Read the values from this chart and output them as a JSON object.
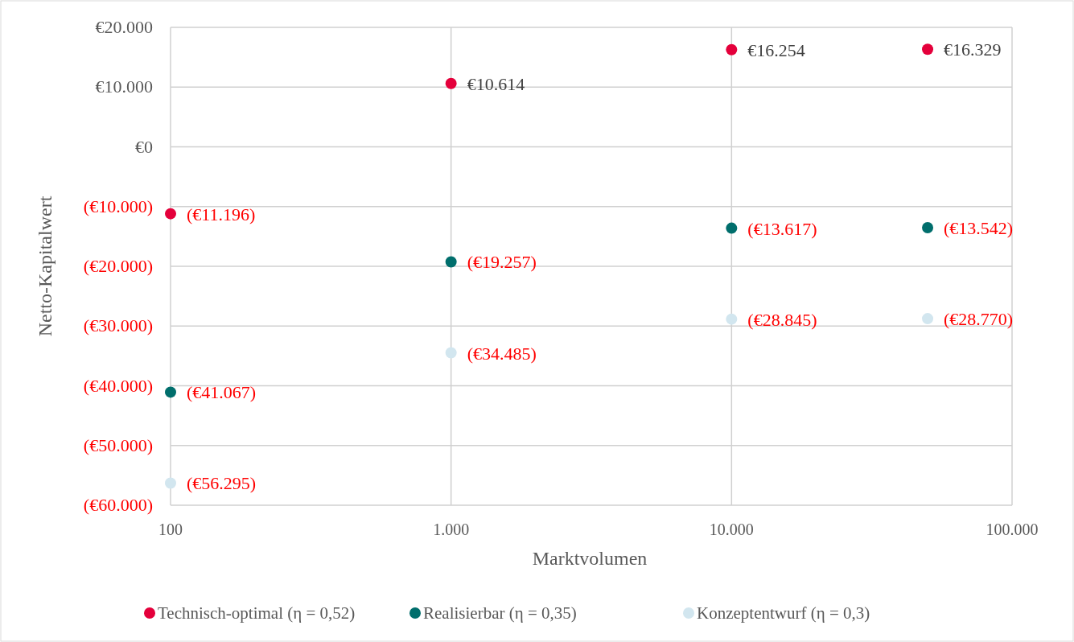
{
  "chart_data": {
    "type": "scatter",
    "xlabel": "Marktvolumen",
    "ylabel": "Netto-Kapitalwert",
    "log": "x",
    "grid": true,
    "legend": "bottom",
    "marker": "circle",
    "x": [
      100,
      1000,
      10000,
      50000
    ],
    "xlim": [
      100,
      100000
    ],
    "xticks": [
      {
        "value": 100,
        "label": "100"
      },
      {
        "value": 1000,
        "label": "1.000"
      },
      {
        "value": 10000,
        "label": "10.000"
      },
      {
        "value": 100000,
        "label": "100.000"
      }
    ],
    "ylim": [
      -60000,
      20000
    ],
    "yticks": [
      {
        "value": -60000,
        "label": "(€60.000)"
      },
      {
        "value": -50000,
        "label": "(€50.000)"
      },
      {
        "value": -40000,
        "label": "(€40.000)"
      },
      {
        "value": -30000,
        "label": "(€30.000)"
      },
      {
        "value": -20000,
        "label": "(€20.000)"
      },
      {
        "value": -10000,
        "label": "(€10.000)"
      },
      {
        "value": 0,
        "label": "€0"
      },
      {
        "value": 10000,
        "label": "€10.000"
      },
      {
        "value": 20000,
        "label": "€20.000"
      }
    ],
    "series": [
      {
        "name": "Technisch-optimal (η = 0,52)",
        "color": "#e4003b",
        "values": [
          -11196,
          10614,
          16254,
          16329
        ],
        "value_labels": [
          "(€11.196)",
          "€10.614",
          "€16.254",
          "€16.329"
        ]
      },
      {
        "name": "Realisierbar (η = 0,35)",
        "color": "#006e6c",
        "values": [
          -41067,
          -19257,
          -13617,
          -13542
        ],
        "value_labels": [
          "(€41.067)",
          "(€19.257)",
          "(€13.617)",
          "(€13.542)"
        ]
      },
      {
        "name": "Konzeptentwurf (η = 0,3)",
        "color": "#d2e6ef",
        "values": [
          -56295,
          -34485,
          -28845,
          -28770
        ],
        "value_labels": [
          "(€56.295)",
          "(€34.485)",
          "(€28.845)",
          "(€28.770)"
        ]
      }
    ]
  }
}
